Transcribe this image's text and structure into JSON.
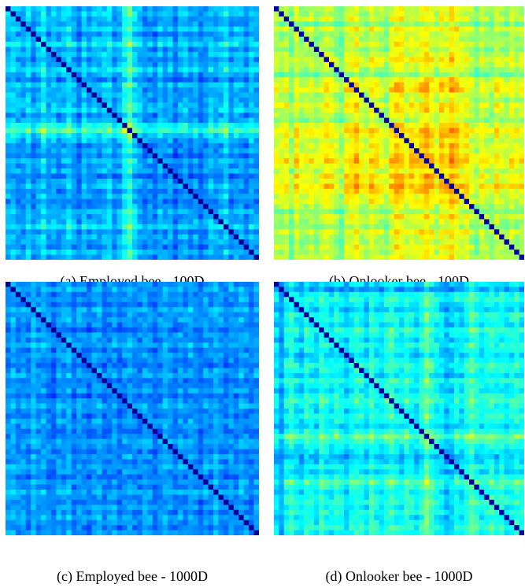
{
  "figure": {
    "panels": [
      {
        "caption": "(a) Employed bee - 100D"
      },
      {
        "caption": "(b) Onlooker bee - 100D"
      },
      {
        "caption": "(c) Employed bee - 1000D"
      },
      {
        "caption": "(d) Onlooker bee - 1000D"
      }
    ]
  },
  "chart_data": [
    {
      "type": "heatmap",
      "title": "(a) Employed bee - 100D",
      "grid": false,
      "colormap": "jet",
      "rows": 50,
      "cols": 50,
      "diagonal_level": 0.02,
      "mean_level": 0.3,
      "row_levels": [
        0.3,
        0.34,
        0.28,
        0.26,
        0.36,
        0.22,
        0.3,
        0.42,
        0.26,
        0.32,
        0.24,
        0.3,
        0.38,
        0.28,
        0.2,
        0.34,
        0.26,
        0.3,
        0.28,
        0.32,
        0.36,
        0.24,
        0.3,
        0.48,
        0.62,
        0.4,
        0.3,
        0.22,
        0.26,
        0.2,
        0.3,
        0.24,
        0.28,
        0.18,
        0.26,
        0.3,
        0.22,
        0.28,
        0.2,
        0.24,
        0.32,
        0.26,
        0.3,
        0.4,
        0.24,
        0.3,
        0.28,
        0.22,
        0.32,
        0.26
      ]
    },
    {
      "type": "heatmap",
      "title": "(b) Onlooker bee - 100D",
      "grid": false,
      "colormap": "jet",
      "rows": 50,
      "cols": 50,
      "diagonal_level": 0.04,
      "mean_level": 0.55,
      "row_levels": [
        0.52,
        0.5,
        0.56,
        0.42,
        0.58,
        0.48,
        0.5,
        0.54,
        0.46,
        0.52,
        0.6,
        0.56,
        0.48,
        0.4,
        0.58,
        0.62,
        0.66,
        0.54,
        0.5,
        0.62,
        0.58,
        0.52,
        0.46,
        0.6,
        0.7,
        0.66,
        0.56,
        0.62,
        0.58,
        0.66,
        0.72,
        0.64,
        0.54,
        0.68,
        0.62,
        0.74,
        0.66,
        0.58,
        0.6,
        0.52,
        0.44,
        0.56,
        0.5,
        0.46,
        0.58,
        0.52,
        0.48,
        0.56,
        0.5,
        0.54
      ]
    },
    {
      "type": "heatmap",
      "title": "(c) Employed bee - 1000D",
      "grid": false,
      "colormap": "jet",
      "rows": 50,
      "cols": 50,
      "diagonal_level": 0.02,
      "mean_level": 0.27,
      "row_levels": [
        0.26,
        0.3,
        0.24,
        0.28,
        0.22,
        0.32,
        0.26,
        0.3,
        0.24,
        0.2,
        0.28,
        0.26,
        0.32,
        0.22,
        0.28,
        0.24,
        0.2,
        0.26,
        0.3,
        0.22,
        0.24,
        0.28,
        0.2,
        0.26,
        0.3,
        0.24,
        0.22,
        0.28,
        0.26,
        0.2,
        0.24,
        0.3,
        0.26,
        0.22,
        0.28,
        0.24,
        0.3,
        0.26,
        0.2,
        0.28,
        0.24,
        0.32,
        0.26,
        0.22,
        0.28,
        0.24,
        0.3,
        0.26,
        0.22,
        0.28
      ]
    },
    {
      "type": "heatmap",
      "title": "(d) Onlooker bee - 1000D",
      "grid": false,
      "colormap": "jet",
      "rows": 50,
      "cols": 50,
      "diagonal_level": 0.03,
      "mean_level": 0.38,
      "row_levels": [
        0.3,
        0.2,
        0.36,
        0.42,
        0.34,
        0.28,
        0.4,
        0.36,
        0.3,
        0.44,
        0.38,
        0.32,
        0.4,
        0.34,
        0.28,
        0.36,
        0.42,
        0.38,
        0.3,
        0.44,
        0.36,
        0.32,
        0.4,
        0.46,
        0.38,
        0.34,
        0.42,
        0.36,
        0.3,
        0.4,
        0.58,
        0.44,
        0.36,
        0.32,
        0.24,
        0.28,
        0.36,
        0.3,
        0.4,
        0.52,
        0.42,
        0.34,
        0.38,
        0.44,
        0.36,
        0.4,
        0.34,
        0.38,
        0.42,
        0.36
      ]
    }
  ]
}
